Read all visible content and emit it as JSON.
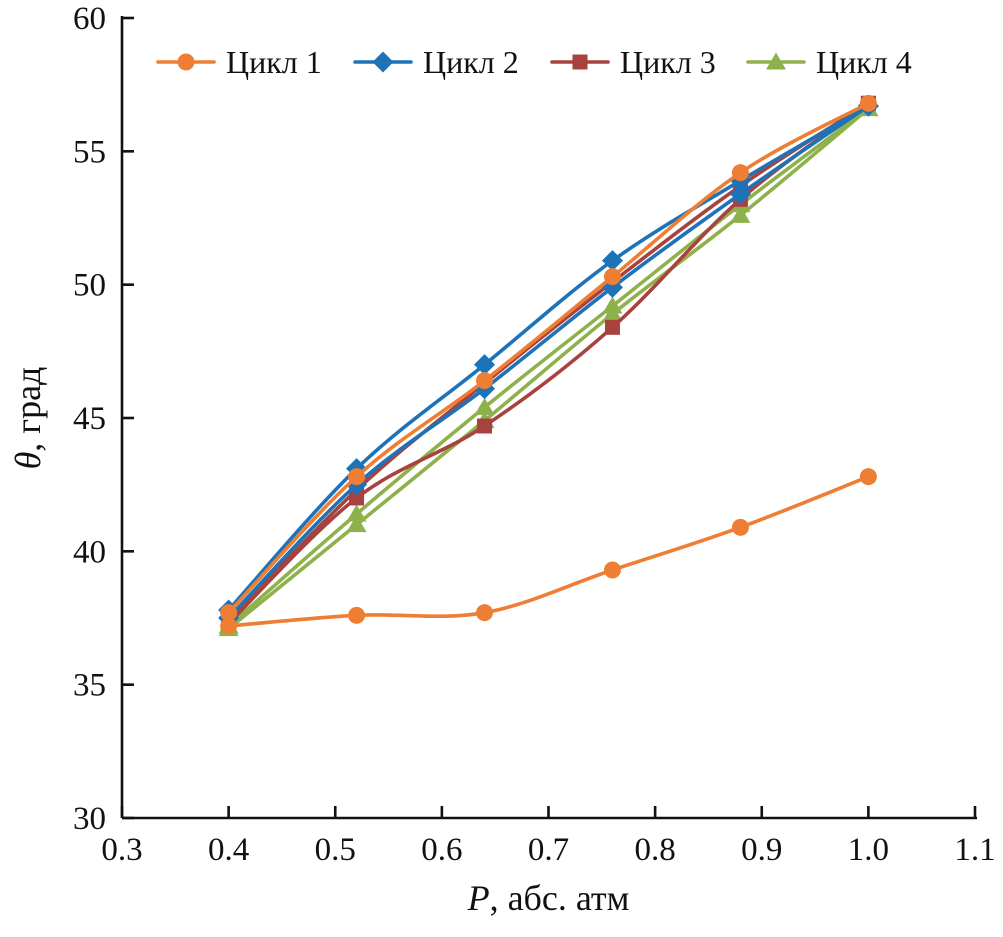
{
  "chart_data": {
    "type": "line",
    "title": "",
    "xlabel": "P, абс. атм",
    "ylabel": "θ, град",
    "xlim": [
      0.3,
      1.1
    ],
    "ylim": [
      30,
      60
    ],
    "xticks": [
      0.3,
      0.4,
      0.5,
      0.6,
      0.7,
      0.8,
      0.9,
      1.0,
      1.1
    ],
    "yticks": [
      30,
      35,
      40,
      45,
      50,
      55,
      60
    ],
    "grid": false,
    "legend": {
      "position": "top-inside-horizontal",
      "entries": [
        {
          "label": "Цикл 1",
          "color": "#EE7E33",
          "marker": "circle"
        },
        {
          "label": "Цикл 2",
          "color": "#1E73B8",
          "marker": "diamond"
        },
        {
          "label": "Цикл 3",
          "color": "#A8423E",
          "marker": "square"
        },
        {
          "label": "Цикл 4",
          "color": "#8FB14C",
          "marker": "triangle"
        }
      ]
    },
    "x": [
      0.4,
      0.52,
      0.64,
      0.76,
      0.88,
      1.0
    ],
    "series": [
      {
        "name": "Цикл 4",
        "branch": "lower",
        "color": "#8FB14C",
        "marker": "triangle",
        "y": [
          37.1,
          41.0,
          44.9,
          48.9,
          52.6,
          56.6
        ]
      },
      {
        "name": "Цикл 4",
        "branch": "upper",
        "color": "#8FB14C",
        "marker": "triangle",
        "y": [
          37.2,
          41.4,
          45.4,
          49.2,
          53.0,
          56.6
        ]
      },
      {
        "name": "Цикл 3",
        "branch": "lower",
        "color": "#A8423E",
        "marker": "square",
        "y": [
          37.3,
          42.0,
          44.7,
          48.4,
          53.2,
          56.8
        ]
      },
      {
        "name": "Цикл 3",
        "branch": "upper",
        "color": "#A8423E",
        "marker": "square",
        "y": [
          37.4,
          42.3,
          46.3,
          50.1,
          53.7,
          56.8
        ]
      },
      {
        "name": "Цикл 2",
        "branch": "lower",
        "color": "#1E73B8",
        "marker": "diamond",
        "y": [
          37.5,
          42.5,
          46.1,
          49.9,
          53.4,
          56.7
        ]
      },
      {
        "name": "Цикл 2",
        "branch": "upper",
        "color": "#1E73B8",
        "marker": "diamond",
        "y": [
          37.8,
          43.1,
          47.0,
          50.9,
          53.9,
          56.7
        ]
      },
      {
        "name": "Цикл 1",
        "branch": "upper",
        "color": "#EE7E33",
        "marker": "circle",
        "y": [
          37.7,
          42.8,
          46.4,
          50.3,
          54.2,
          56.8
        ]
      },
      {
        "name": "Цикл 1",
        "branch": "lower",
        "color": "#EE7E33",
        "marker": "circle",
        "y": [
          37.2,
          37.6,
          37.7,
          39.3,
          40.9,
          42.8
        ]
      }
    ]
  }
}
